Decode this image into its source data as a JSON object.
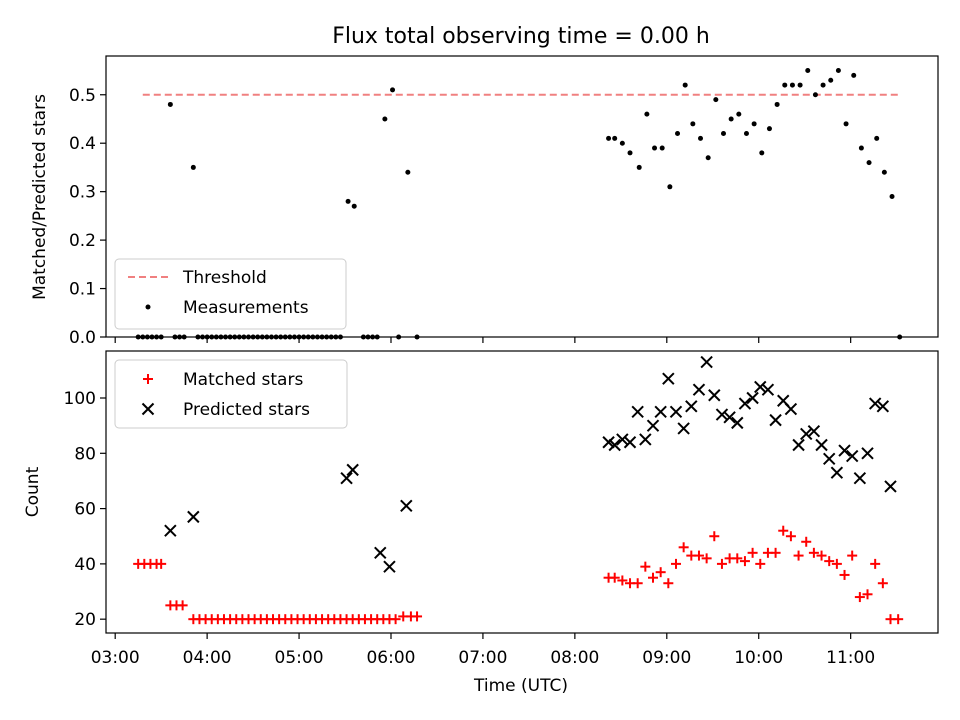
{
  "chart_data": [
    {
      "type": "scatter",
      "title": "Flux total observing time = 0.00 h",
      "xlabel": "",
      "ylabel": "Matched/Predicted stars",
      "xlim": [
        "02:54",
        "11:57"
      ],
      "ylim": [
        0,
        0.58
      ],
      "yticks": [
        0.0,
        0.1,
        0.2,
        0.3,
        0.4,
        0.5
      ],
      "ytick_labels": [
        "0.0",
        "0.1",
        "0.2",
        "0.3",
        "0.4",
        "0.5"
      ],
      "threshold": {
        "name": "Threshold",
        "y": 0.5,
        "x_start": "03:18",
        "x_end": "11:33",
        "color": "#f08080",
        "style": "dashed"
      },
      "series": [
        {
          "name": "Measurements",
          "marker": "dot",
          "color": "#000000",
          "points": [
            [
              "03:15",
              0
            ],
            [
              "03:18",
              0
            ],
            [
              "03:21",
              0
            ],
            [
              "03:24",
              0
            ],
            [
              "03:27",
              0
            ],
            [
              "03:30",
              0
            ],
            [
              "03:36",
              0.48
            ],
            [
              "03:39",
              0
            ],
            [
              "03:42",
              0
            ],
            [
              "03:45",
              0
            ],
            [
              "03:51",
              0.35
            ],
            [
              "03:54",
              0
            ],
            [
              "03:57",
              0
            ],
            [
              "04:00",
              0
            ],
            [
              "04:03",
              0
            ],
            [
              "04:06",
              0
            ],
            [
              "04:09",
              0
            ],
            [
              "04:12",
              0
            ],
            [
              "04:15",
              0
            ],
            [
              "04:18",
              0
            ],
            [
              "04:21",
              0
            ],
            [
              "04:24",
              0
            ],
            [
              "04:27",
              0
            ],
            [
              "04:30",
              0
            ],
            [
              "04:33",
              0
            ],
            [
              "04:36",
              0
            ],
            [
              "04:39",
              0
            ],
            [
              "04:42",
              0
            ],
            [
              "04:45",
              0
            ],
            [
              "04:48",
              0
            ],
            [
              "04:51",
              0
            ],
            [
              "04:54",
              0
            ],
            [
              "04:57",
              0
            ],
            [
              "05:00",
              0
            ],
            [
              "05:03",
              0
            ],
            [
              "05:06",
              0
            ],
            [
              "05:09",
              0
            ],
            [
              "05:12",
              0
            ],
            [
              "05:15",
              0
            ],
            [
              "05:18",
              0
            ],
            [
              "05:21",
              0
            ],
            [
              "05:24",
              0
            ],
            [
              "05:27",
              0
            ],
            [
              "05:32",
              0.28
            ],
            [
              "05:36",
              0.27
            ],
            [
              "05:42",
              0
            ],
            [
              "05:45",
              0
            ],
            [
              "05:48",
              0
            ],
            [
              "05:51",
              0
            ],
            [
              "05:56",
              0.45
            ],
            [
              "06:01",
              0.51
            ],
            [
              "06:05",
              0
            ],
            [
              "06:11",
              0.34
            ],
            [
              "06:17",
              0
            ],
            [
              "08:22",
              0.41
            ],
            [
              "08:26",
              0.41
            ],
            [
              "08:31",
              0.4
            ],
            [
              "08:36",
              0.38
            ],
            [
              "08:42",
              0.35
            ],
            [
              "08:47",
              0.46
            ],
            [
              "08:52",
              0.39
            ],
            [
              "08:57",
              0.39
            ],
            [
              "09:02",
              0.31
            ],
            [
              "09:07",
              0.42
            ],
            [
              "09:12",
              0.52
            ],
            [
              "09:17",
              0.44
            ],
            [
              "09:22",
              0.41
            ],
            [
              "09:27",
              0.37
            ],
            [
              "09:32",
              0.49
            ],
            [
              "09:37",
              0.42
            ],
            [
              "09:42",
              0.45
            ],
            [
              "09:47",
              0.46
            ],
            [
              "09:52",
              0.42
            ],
            [
              "09:57",
              0.44
            ],
            [
              "10:02",
              0.38
            ],
            [
              "10:07",
              0.43
            ],
            [
              "10:12",
              0.48
            ],
            [
              "10:17",
              0.52
            ],
            [
              "10:22",
              0.52
            ],
            [
              "10:27",
              0.52
            ],
            [
              "10:32",
              0.55
            ],
            [
              "10:37",
              0.5
            ],
            [
              "10:42",
              0.52
            ],
            [
              "10:47",
              0.53
            ],
            [
              "10:52",
              0.55
            ],
            [
              "10:57",
              0.44
            ],
            [
              "11:02",
              0.54
            ],
            [
              "11:07",
              0.39
            ],
            [
              "11:12",
              0.36
            ],
            [
              "11:17",
              0.41
            ],
            [
              "11:22",
              0.34
            ],
            [
              "11:27",
              0.29
            ],
            [
              "11:32",
              0
            ]
          ]
        }
      ],
      "legend": {
        "position": "lower-left",
        "entries": [
          "Threshold",
          "Measurements"
        ]
      },
      "grid": false
    },
    {
      "type": "scatter",
      "title": "",
      "xlabel": "Time (UTC)",
      "ylabel": "Count",
      "xlim": [
        "02:54",
        "11:57"
      ],
      "ylim": [
        15,
        117
      ],
      "yticks": [
        20,
        40,
        60,
        80,
        100
      ],
      "ytick_labels": [
        "20",
        "40",
        "60",
        "80",
        "100"
      ],
      "xticks": [
        "03:00",
        "04:00",
        "05:00",
        "06:00",
        "07:00",
        "08:00",
        "09:00",
        "10:00",
        "11:00"
      ],
      "xtick_labels": [
        "03:00",
        "04:00",
        "05:00",
        "06:00",
        "07:00",
        "08:00",
        "09:00",
        "10:00",
        "11:00"
      ],
      "series": [
        {
          "name": "Matched stars",
          "marker": "plus",
          "color": "#ff0000",
          "points": [
            [
              "03:15",
              40
            ],
            [
              "03:19",
              40
            ],
            [
              "03:23",
              40
            ],
            [
              "03:27",
              40
            ],
            [
              "03:30",
              40
            ],
            [
              "03:36",
              25
            ],
            [
              "03:40",
              25
            ],
            [
              "03:44",
              25
            ],
            [
              "03:51",
              20
            ],
            [
              "03:55",
              20
            ],
            [
              "03:59",
              20
            ],
            [
              "04:03",
              20
            ],
            [
              "04:07",
              20
            ],
            [
              "04:11",
              20
            ],
            [
              "04:15",
              20
            ],
            [
              "04:19",
              20
            ],
            [
              "04:23",
              20
            ],
            [
              "04:27",
              20
            ],
            [
              "04:31",
              20
            ],
            [
              "04:35",
              20
            ],
            [
              "04:39",
              20
            ],
            [
              "04:43",
              20
            ],
            [
              "04:47",
              20
            ],
            [
              "04:51",
              20
            ],
            [
              "04:55",
              20
            ],
            [
              "04:59",
              20
            ],
            [
              "05:03",
              20
            ],
            [
              "05:07",
              20
            ],
            [
              "05:11",
              20
            ],
            [
              "05:15",
              20
            ],
            [
              "05:19",
              20
            ],
            [
              "05:23",
              20
            ],
            [
              "05:27",
              20
            ],
            [
              "05:31",
              20
            ],
            [
              "05:35",
              20
            ],
            [
              "05:39",
              20
            ],
            [
              "05:43",
              20
            ],
            [
              "05:47",
              20
            ],
            [
              "05:51",
              20
            ],
            [
              "05:55",
              20
            ],
            [
              "05:59",
              20
            ],
            [
              "06:03",
              20
            ],
            [
              "06:08",
              21
            ],
            [
              "06:13",
              21
            ],
            [
              "06:17",
              21
            ],
            [
              "08:22",
              35
            ],
            [
              "08:26",
              35
            ],
            [
              "08:31",
              34
            ],
            [
              "08:36",
              33
            ],
            [
              "08:41",
              33
            ],
            [
              "08:46",
              39
            ],
            [
              "08:51",
              35
            ],
            [
              "08:56",
              37
            ],
            [
              "09:01",
              33
            ],
            [
              "09:06",
              40
            ],
            [
              "09:11",
              46
            ],
            [
              "09:16",
              43
            ],
            [
              "09:21",
              43
            ],
            [
              "09:26",
              42
            ],
            [
              "09:31",
              50
            ],
            [
              "09:36",
              40
            ],
            [
              "09:41",
              42
            ],
            [
              "09:46",
              42
            ],
            [
              "09:51",
              41
            ],
            [
              "09:56",
              44
            ],
            [
              "10:01",
              40
            ],
            [
              "10:06",
              44
            ],
            [
              "10:11",
              44
            ],
            [
              "10:16",
              52
            ],
            [
              "10:21",
              50
            ],
            [
              "10:26",
              43
            ],
            [
              "10:31",
              48
            ],
            [
              "10:36",
              44
            ],
            [
              "10:41",
              43
            ],
            [
              "10:46",
              41
            ],
            [
              "10:51",
              40
            ],
            [
              "10:56",
              36
            ],
            [
              "11:01",
              43
            ],
            [
              "11:06",
              28
            ],
            [
              "11:11",
              29
            ],
            [
              "11:16",
              40
            ],
            [
              "11:21",
              33
            ],
            [
              "11:26",
              20
            ],
            [
              "11:31",
              20
            ]
          ]
        },
        {
          "name": "Predicted stars",
          "marker": "x",
          "color": "#000000",
          "points": [
            [
              "03:36",
              52
            ],
            [
              "03:51",
              57
            ],
            [
              "05:31",
              71
            ],
            [
              "05:35",
              74
            ],
            [
              "05:53",
              44
            ],
            [
              "05:59",
              39
            ],
            [
              "06:10",
              61
            ],
            [
              "08:22",
              84
            ],
            [
              "08:26",
              83
            ],
            [
              "08:31",
              85
            ],
            [
              "08:36",
              84
            ],
            [
              "08:41",
              95
            ],
            [
              "08:46",
              85
            ],
            [
              "08:51",
              90
            ],
            [
              "08:56",
              95
            ],
            [
              "09:01",
              107
            ],
            [
              "09:06",
              95
            ],
            [
              "09:11",
              89
            ],
            [
              "09:16",
              97
            ],
            [
              "09:21",
              103
            ],
            [
              "09:26",
              113
            ],
            [
              "09:31",
              101
            ],
            [
              "09:36",
              94
            ],
            [
              "09:41",
              93
            ],
            [
              "09:46",
              91
            ],
            [
              "09:51",
              98
            ],
            [
              "09:56",
              100
            ],
            [
              "10:01",
              104
            ],
            [
              "10:06",
              103
            ],
            [
              "10:11",
              92
            ],
            [
              "10:16",
              99
            ],
            [
              "10:21",
              96
            ],
            [
              "10:26",
              83
            ],
            [
              "10:31",
              87
            ],
            [
              "10:36",
              88
            ],
            [
              "10:41",
              83
            ],
            [
              "10:46",
              78
            ],
            [
              "10:51",
              73
            ],
            [
              "10:56",
              81
            ],
            [
              "11:01",
              79
            ],
            [
              "11:06",
              71
            ],
            [
              "11:11",
              80
            ],
            [
              "11:16",
              98
            ],
            [
              "11:21",
              97
            ],
            [
              "11:26",
              68
            ]
          ]
        }
      ],
      "legend": {
        "position": "upper-left",
        "entries": [
          "Matched stars",
          "Predicted stars"
        ]
      },
      "grid": false
    }
  ]
}
